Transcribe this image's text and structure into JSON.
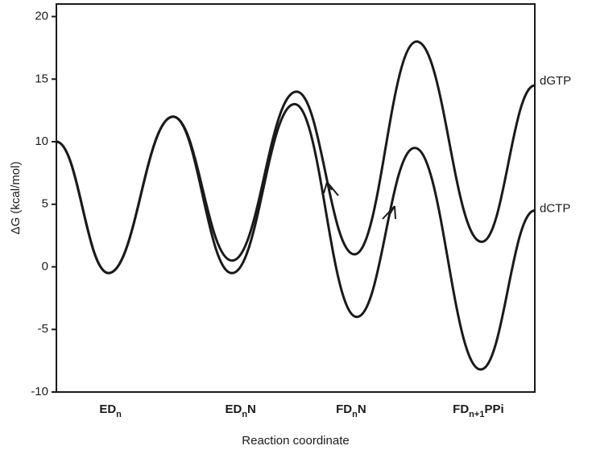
{
  "chart_data": {
    "type": "line",
    "x_label": "Reaction coordinate",
    "y_label": "ΔG (kcal/mol)",
    "xlim": [
      0,
      100
    ],
    "ylim": [
      -10,
      21
    ],
    "yticks": [
      -10,
      -5,
      0,
      5,
      10,
      15,
      20
    ],
    "xticks": [
      {
        "value": 11.3,
        "label": "ED",
        "sub": "n"
      },
      {
        "value": 38.5,
        "label": "ED",
        "sub": "n",
        "after": "N"
      },
      {
        "value": 61.6,
        "label": "FD",
        "sub": "n",
        "after": "N"
      },
      {
        "value": 88.2,
        "label": "FD",
        "sub": "n+1",
        "after": "PPi"
      }
    ],
    "series": [
      {
        "name": "dGTP",
        "color": "#1a1a1a",
        "x": [
          0,
          10.9,
          24.4,
          36.7,
          50.2,
          62.3,
          75.3,
          88.9,
          100
        ],
        "values": [
          10,
          -0.5,
          12,
          0.5,
          14,
          1,
          18,
          2,
          14.5
        ]
      },
      {
        "name": "dCTP",
        "color": "#1a1a1a",
        "x": [
          0,
          10.9,
          24.4,
          36.7,
          49.8,
          62.8,
          74.9,
          88.7,
          100
        ],
        "values": [
          10,
          -0.5,
          12,
          -0.5,
          13,
          -4,
          9.5,
          -8.2,
          4.5
        ]
      }
    ]
  }
}
